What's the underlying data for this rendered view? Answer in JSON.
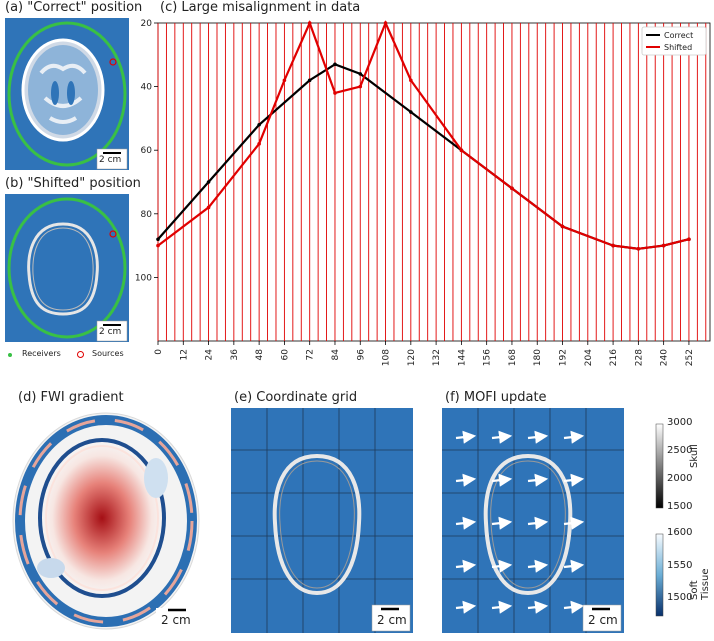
{
  "panels": {
    "a": {
      "title": "(a) \"Correct\" position",
      "scale": "2 cm"
    },
    "b": {
      "title": "(b) \"Shifted\" position",
      "scale": "2 cm"
    },
    "c": {
      "title": "(c) Large misalignment in data"
    },
    "d": {
      "title": "(d) FWI gradient",
      "scale": "2 cm"
    },
    "e": {
      "title": "(e) Coordinate grid",
      "scale": "2 cm"
    },
    "f": {
      "title": "(f) MOFI update",
      "scale": "2 cm"
    }
  },
  "legend_ab": {
    "receivers": "Receivers",
    "sources": "Sources"
  },
  "colorbars": {
    "skull": {
      "label": "Skull",
      "ticks": [
        "3000",
        "2500",
        "2000",
        "1500"
      ]
    },
    "soft_tissue": {
      "label": "Soft Tissue",
      "ticks": [
        "1600",
        "1550",
        "1500"
      ]
    }
  },
  "colors": {
    "background_blue": "#2f74b8",
    "receiver_green": "#39c045",
    "correct": "#000000",
    "shifted": "#e00000"
  },
  "chart_data": {
    "type": "line",
    "title": "(c) Large misalignment in data",
    "xlabel": "",
    "ylabel": "",
    "xlim": [
      0,
      262
    ],
    "ylim": [
      120,
      20
    ],
    "xticks": [
      0,
      12,
      24,
      36,
      48,
      60,
      72,
      84,
      96,
      108,
      120,
      132,
      144,
      156,
      168,
      180,
      192,
      204,
      216,
      228,
      240,
      252
    ],
    "yticks": [
      20,
      40,
      60,
      80,
      100
    ],
    "legend_position": "top-right",
    "series": [
      {
        "name": "Correct",
        "color": "#000000",
        "x": [
          0,
          24,
          48,
          72,
          84,
          96,
          120,
          144,
          168,
          192,
          216,
          228,
          240,
          252
        ],
        "y": [
          88,
          70,
          52,
          38,
          33,
          36,
          48,
          60,
          72,
          84,
          90,
          91,
          90,
          88
        ]
      },
      {
        "name": "Shifted",
        "color": "#e00000",
        "x": [
          0,
          24,
          48,
          60,
          72,
          84,
          96,
          108,
          120,
          144,
          168,
          192,
          216,
          228,
          240,
          252
        ],
        "y": [
          90,
          78,
          58,
          38,
          20,
          42,
          40,
          20,
          38,
          60,
          72,
          84,
          90,
          91,
          90,
          88
        ]
      }
    ]
  }
}
